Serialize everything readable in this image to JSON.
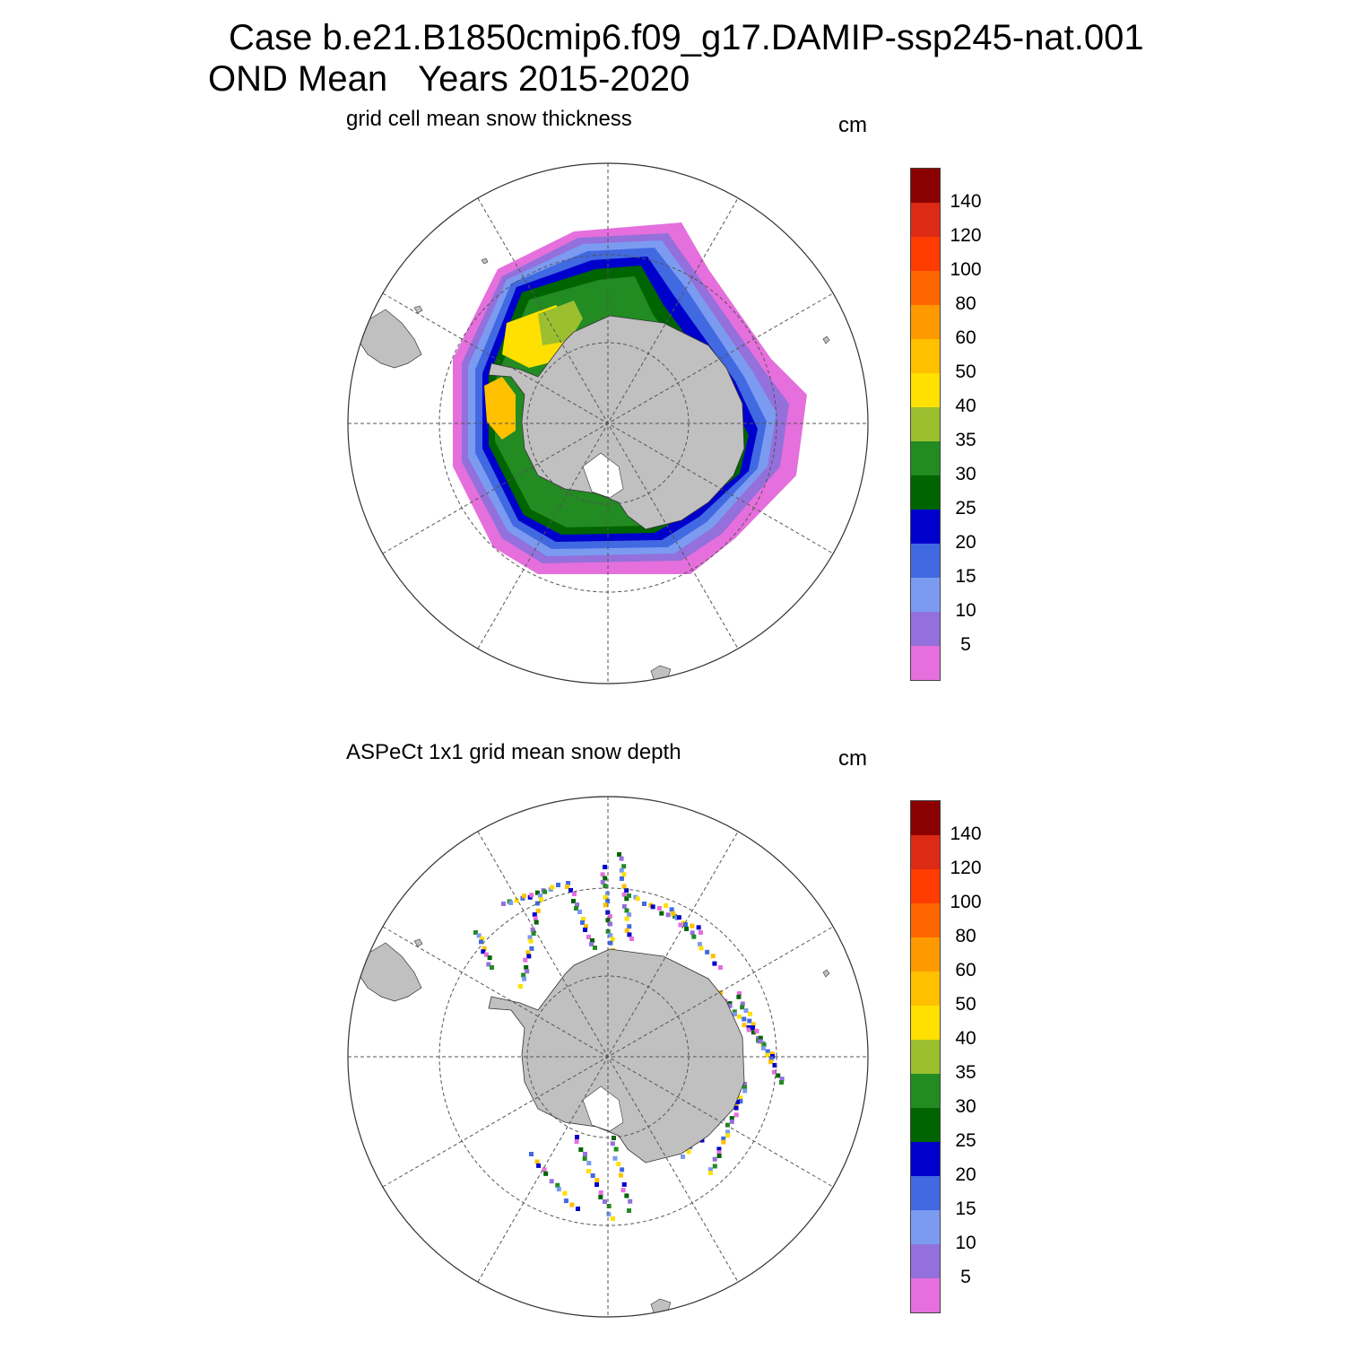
{
  "title": {
    "line1": "Case b.e21.B1850cmip6.f09_g17.DAMIP-ssp245-nat.001",
    "line2_season": "OND Mean",
    "line2_years": "Years 2015-2020"
  },
  "panels": [
    {
      "id": "model",
      "title": "grid cell mean snow thickness",
      "units": "cm"
    },
    {
      "id": "obs",
      "title": "ASPeCt 1x1 grid mean snow depth",
      "units": "cm"
    }
  ],
  "colorbar": {
    "colors": [
      "#8b0000",
      "#dc2a15",
      "#ff3c00",
      "#ff6600",
      "#ff9900",
      "#ffc000",
      "#ffe000",
      "#9bbf2f",
      "#228b22",
      "#006400",
      "#0000cd",
      "#4169e1",
      "#7b9bf0",
      "#9370db",
      "#e56fdc"
    ],
    "labels": [
      "140",
      "120",
      "100",
      "80",
      "60",
      "50",
      "40",
      "35",
      "30",
      "25",
      "20",
      "15",
      "10",
      "5"
    ]
  },
  "colors": {
    "land": "#c0c0c0",
    "ocean": "#ffffff",
    "grid": "#555555"
  }
}
